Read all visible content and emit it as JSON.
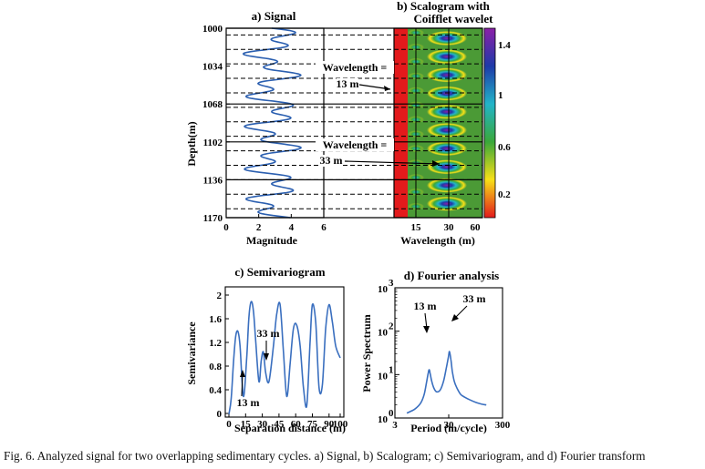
{
  "panels": {
    "signal": {
      "title": "a) Signal",
      "xlabel": "Magnitude",
      "ylabel": "Depth(m)",
      "xticks": [
        "0",
        "2",
        "4",
        "6"
      ],
      "yticks": [
        "1000",
        "1034",
        "1068",
        "1102",
        "1136",
        "1170"
      ]
    },
    "scalogram": {
      "title_line1": "b) Scalogram with",
      "title_line2": "Coifflet wavelet",
      "xlabel": "Wavelength (m)",
      "xticks": [
        "15",
        "30",
        "60"
      ],
      "colorbar_ticks": [
        "1.4",
        "1",
        "0.6",
        "0.2"
      ],
      "annotation1_line1": "Wavelength =",
      "annotation1_line2": "13 m",
      "annotation2_line1": "Wavelength =",
      "annotation2_line2": "33 m"
    },
    "semivariogram": {
      "title": "c) Semivariogram",
      "xlabel": "Separation distance (m)",
      "ylabel": "Semivariance",
      "xticks": [
        "0",
        "15",
        "30",
        "45",
        "60",
        "75",
        "90",
        "100"
      ],
      "yticks": [
        "0",
        "0.4",
        "0.8",
        "1.2",
        "1.6",
        "2"
      ],
      "label_13": "13 m",
      "label_33": "33 m"
    },
    "fourier": {
      "title": "d) Fourier analysis",
      "xlabel": "Period (m/cycle)",
      "ylabel": "Power Spectrum",
      "xticks": [
        "3",
        "30",
        "300"
      ],
      "label_13": "13 m",
      "label_33": "33 m"
    }
  },
  "chart_data": [
    {
      "type": "line",
      "title": "a) Signal",
      "xlabel": "Magnitude",
      "ylabel": "Depth(m)",
      "xlim": [
        0,
        6
      ],
      "ylim": [
        1000,
        1170
      ],
      "y_inverted": true,
      "series": [
        {
          "name": "Signal",
          "components": [
            {
              "wavelength_m": 13,
              "amplitude": 0.9
            },
            {
              "wavelength_m": 33,
              "amplitude": 0.9
            }
          ],
          "mean": 2.8
        }
      ]
    },
    {
      "type": "heatmap",
      "title": "b) Scalogram with Coifflet wavelet",
      "xlabel": "Wavelength (m)",
      "ylabel": "Depth(m)",
      "xticks": [
        15,
        30,
        60
      ],
      "colorbar": [
        0.2,
        0.6,
        1,
        1.4
      ],
      "peaks_m": [
        13,
        33
      ]
    },
    {
      "type": "line",
      "title": "c) Semivariogram",
      "xlabel": "Separation distance (m)",
      "ylabel": "Semivariance",
      "xlim": [
        0,
        100
      ],
      "ylim": [
        0,
        2.2
      ],
      "x": [
        0,
        2,
        4,
        6,
        8,
        10,
        13,
        16,
        18,
        20,
        22,
        24,
        27,
        29,
        31,
        33,
        36,
        40,
        43,
        46,
        49,
        52,
        55,
        58,
        61,
        64,
        67,
        70,
        73,
        75,
        78,
        81,
        84,
        87,
        90,
        93,
        96,
        100
      ],
      "values": [
        0.05,
        0.3,
        0.9,
        1.35,
        1.45,
        1.2,
        0.35,
        1.0,
        1.7,
        1.95,
        1.8,
        1.3,
        0.6,
        0.95,
        1.1,
        0.75,
        0.6,
        1.2,
        1.75,
        1.9,
        1.1,
        0.35,
        0.9,
        1.5,
        1.55,
        1.2,
        0.5,
        0.2,
        1.3,
        1.9,
        1.6,
        0.5,
        0.55,
        1.5,
        1.9,
        1.6,
        1.2,
        1.0
      ]
    },
    {
      "type": "line",
      "title": "d) Fourier analysis",
      "xlabel": "Period (m/cycle)",
      "ylabel": "Power Spectrum",
      "x_log": true,
      "y_log": true,
      "xlim": [
        3,
        300
      ],
      "ylim": [
        1,
        1000
      ],
      "x": [
        5,
        7,
        9,
        10.5,
        11.7,
        12.5,
        13,
        13.5,
        14.5,
        16,
        18,
        21,
        24,
        27,
        29.5,
        31,
        33,
        35,
        38,
        43,
        50,
        60,
        75,
        95,
        120,
        150
      ],
      "values": [
        1.3,
        1.6,
        2.2,
        3.5,
        7,
        11,
        13,
        11,
        7,
        4.8,
        4,
        4.5,
        7,
        14,
        25,
        34,
        22,
        12,
        7,
        4.8,
        3.5,
        3,
        2.6,
        2.3,
        2.1,
        2.0
      ]
    }
  ],
  "caption": "Fig. 6. Analyzed signal for two overlapping sedimentary cycles. a) Signal, b) Scalogram; c) Semivariogram, and d) Fourier transform"
}
